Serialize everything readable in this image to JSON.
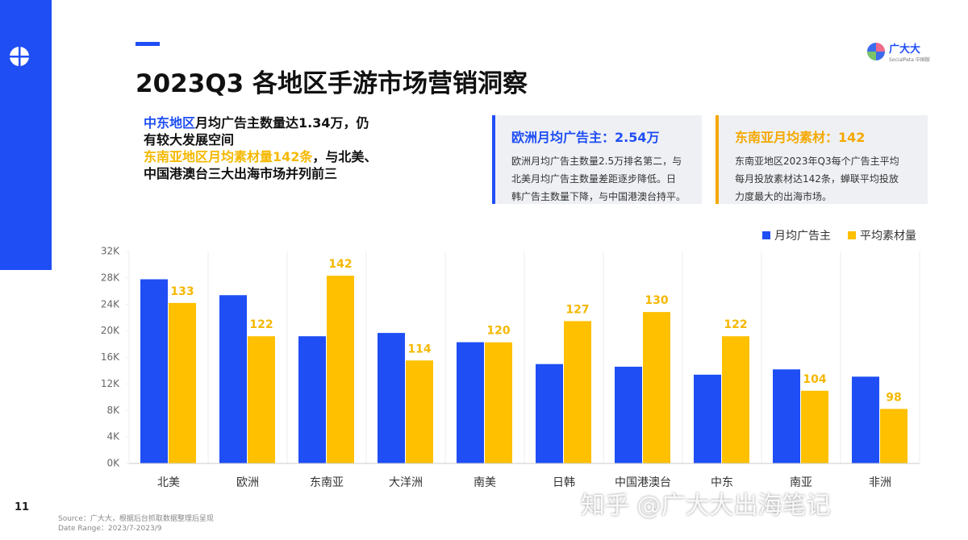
{
  "header": {
    "title": "2023Q3 各地区手游市场营销洞察",
    "logo": "广大大",
    "logo_sub": "SocialPeta 中国版"
  },
  "highlights": [
    [
      {
        "text": "中东地区",
        "color": "#1f4ef5"
      },
      {
        "text": "月均广告主数量达1.34万，仍"
      }
    ],
    [
      {
        "text": "有较大发展空间"
      }
    ],
    [
      {
        "text": "东南亚地区月均素材量142条",
        "color": "#f5b800"
      },
      {
        "text": "，与北美、"
      }
    ],
    [
      {
        "text": "中国港澳台三大出海市场并列前三"
      }
    ]
  ],
  "cards": [
    {
      "title": "欧洲月均广告主：2.54万",
      "color": "#1f4ef5",
      "lines": [
        "欧洲月均广告主数量2.5万排名第二，与",
        "北美月均广告主数量差距逐步降低。日",
        "韩广告主数量下降，与中国港澳台持平。"
      ]
    },
    {
      "title": "东南亚月均素材：142",
      "color": "#f5a800",
      "lines": [
        "东南亚地区2023年Q3每个广告主平均",
        "每月投放素材达142条，蝉联平均投放",
        "力度最大的出海市场。"
      ]
    }
  ],
  "chart_data": {
    "type": "bar",
    "categories": [
      "北美",
      "欧洲",
      "东南亚",
      "大洋洲",
      "南美",
      "日韩",
      "中国港澳台",
      "中东",
      "南亚",
      "非洲"
    ],
    "series": [
      {
        "name": "月均广告主",
        "color": "#1f4ef5",
        "values": [
          27800,
          25400,
          19200,
          19700,
          18300,
          15000,
          14600,
          13400,
          14200,
          13100
        ]
      },
      {
        "name": "平均素材量",
        "color": "#ffc000",
        "axis": "y2",
        "values": [
          133,
          122,
          142,
          114,
          120,
          127,
          130,
          122,
          104,
          98
        ]
      }
    ],
    "ylim": [
      0,
      32000
    ],
    "yticks": [
      {
        "value": 0,
        "label": "0K"
      },
      {
        "value": 4000,
        "label": "4K"
      },
      {
        "value": 8000,
        "label": "8K"
      },
      {
        "value": 12000,
        "label": "12K"
      },
      {
        "value": 16000,
        "label": "16K"
      },
      {
        "value": 20000,
        "label": "20K"
      },
      {
        "value": 24000,
        "label": "24K"
      },
      {
        "value": 28000,
        "label": "28K"
      },
      {
        "value": 32000,
        "label": "32K"
      }
    ],
    "y2lim": [
      80,
      150
    ],
    "legend": "top-right"
  },
  "footer": {
    "source": "Source：广大大，根据后台抓取数据整理后呈现",
    "date_range": "Date Range：2023/7-2023/9",
    "page": "11"
  },
  "watermark": "知乎 @广大大出海笔记"
}
